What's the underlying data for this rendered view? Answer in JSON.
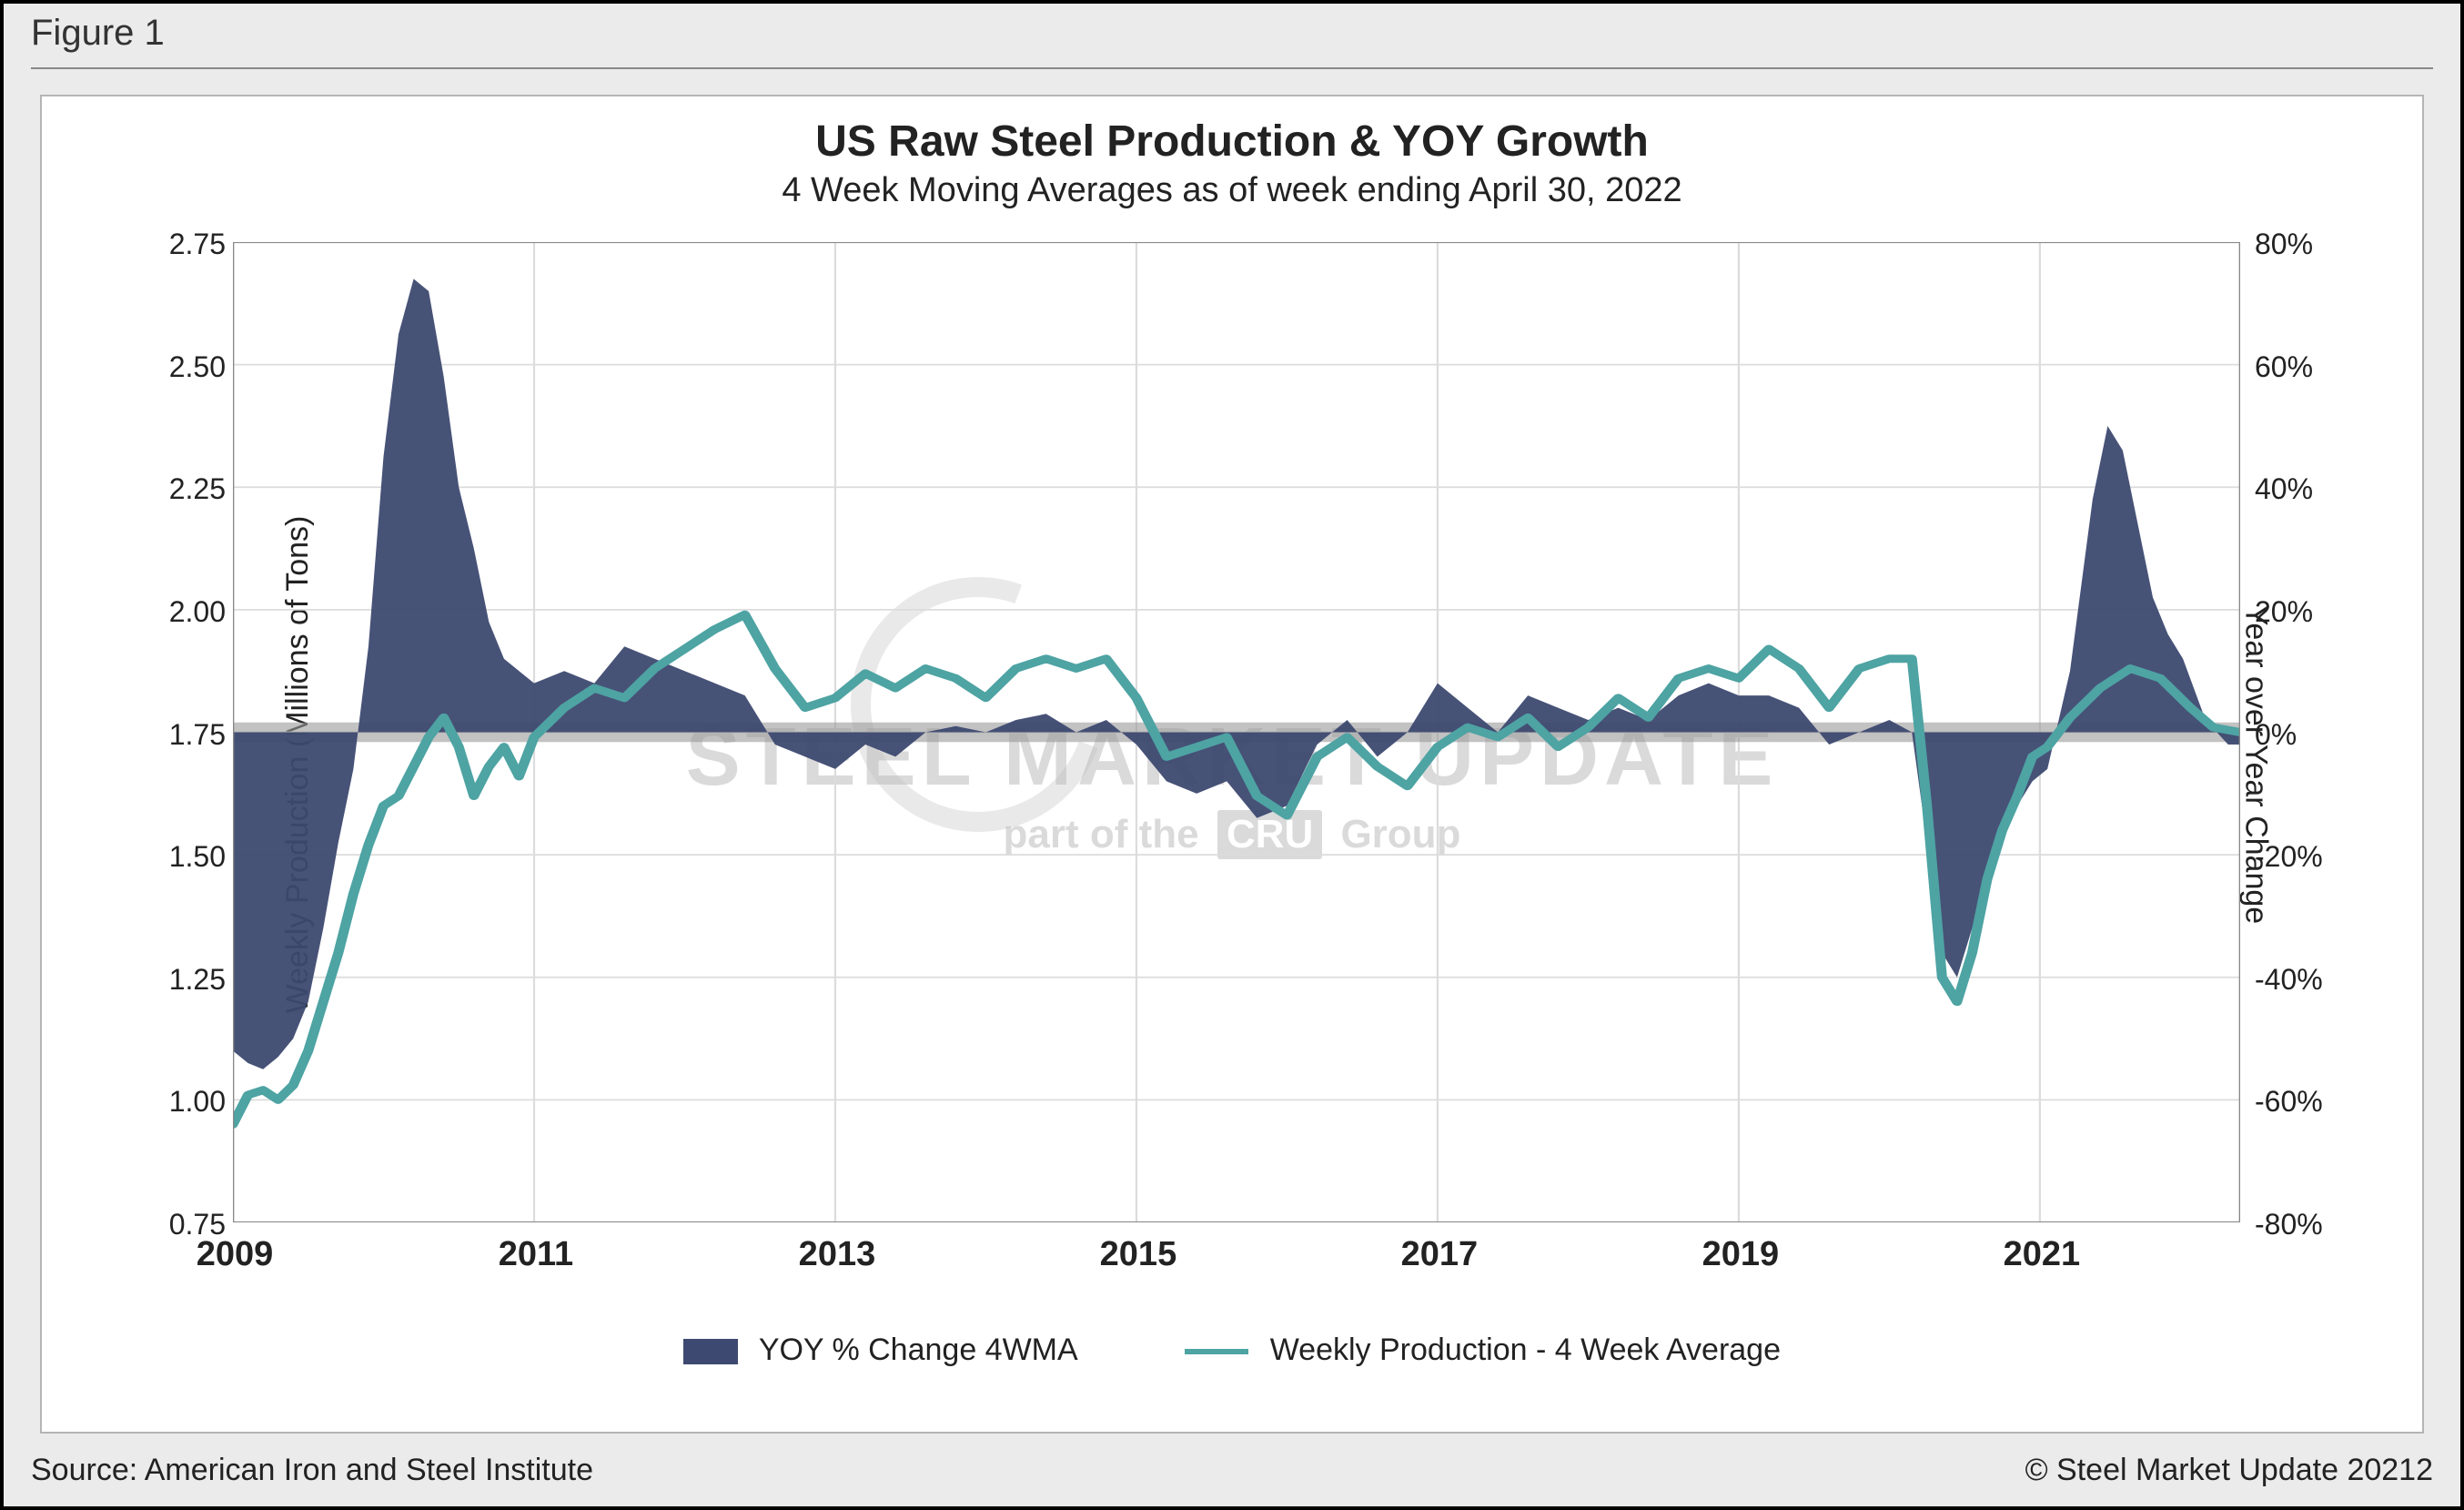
{
  "figure_label": "Figure 1",
  "title": "US Raw Steel Production & YOY Growth",
  "subtitle": "4 Week Moving Averages as of week ending April 30, 2022",
  "ylabel_left": "Weekly Production (Millions of Tons)",
  "ylabel_right": "Year over Year Change",
  "source_left": "Source: American Iron and Steel Institute",
  "source_right": "© Steel Market Update 20212",
  "legend": {
    "area_label": "YOY % Change 4WMA",
    "line_label": "Weekly Production - 4 Week Average"
  },
  "watermark": {
    "line1": "STEEL MARKET UPDATE",
    "line2_prefix": "part of the",
    "line2_box": "CRU",
    "line2_suffix": "Group"
  },
  "chart": {
    "type": "combo-area-line-dual-axis",
    "background_color": "#ffffff",
    "outer_background_color": "#ebebeb",
    "grid_color": "#dcdcdc",
    "axis_color": "#888888",
    "zero_band_color": "#9a9a9a",
    "area_color": "#3d4970",
    "line_color": "#4ea3a3",
    "line_width": 5,
    "title_fontsize": 48,
    "subtitle_fontsize": 38,
    "tick_fontsize": 32,
    "xtick_fontsize": 38,
    "x_range": [
      2009,
      2022.33
    ],
    "x_ticks": [
      2009,
      2011,
      2013,
      2015,
      2017,
      2019,
      2021
    ],
    "y1_range": [
      0.75,
      2.75
    ],
    "y1_ticks": [
      0.75,
      1.0,
      1.25,
      1.5,
      1.75,
      2.0,
      2.25,
      2.5,
      2.75
    ],
    "y1_tick_labels": [
      "0.75",
      "1.00",
      "1.25",
      "1.50",
      "1.75",
      "2.00",
      "2.25",
      "2.50",
      "2.75"
    ],
    "y2_range": [
      -80,
      80
    ],
    "y2_ticks": [
      -80,
      -60,
      -40,
      -20,
      0,
      20,
      40,
      60,
      80
    ],
    "y2_tick_labels": [
      "-80%",
      "-60%",
      "-40%",
      "-20%",
      "0%",
      "20%",
      "40%",
      "60%",
      "80%"
    ],
    "line_series": [
      [
        2009.0,
        0.95
      ],
      [
        2009.1,
        1.01
      ],
      [
        2009.2,
        1.02
      ],
      [
        2009.3,
        1.0
      ],
      [
        2009.4,
        1.03
      ],
      [
        2009.5,
        1.1
      ],
      [
        2009.6,
        1.2
      ],
      [
        2009.7,
        1.3
      ],
      [
        2009.8,
        1.42
      ],
      [
        2009.9,
        1.52
      ],
      [
        2010.0,
        1.6
      ],
      [
        2010.1,
        1.62
      ],
      [
        2010.2,
        1.68
      ],
      [
        2010.3,
        1.74
      ],
      [
        2010.4,
        1.78
      ],
      [
        2010.5,
        1.72
      ],
      [
        2010.6,
        1.62
      ],
      [
        2010.7,
        1.68
      ],
      [
        2010.8,
        1.72
      ],
      [
        2010.9,
        1.66
      ],
      [
        2011.0,
        1.74
      ],
      [
        2011.2,
        1.8
      ],
      [
        2011.4,
        1.84
      ],
      [
        2011.6,
        1.82
      ],
      [
        2011.8,
        1.88
      ],
      [
        2012.0,
        1.92
      ],
      [
        2012.2,
        1.96
      ],
      [
        2012.4,
        1.99
      ],
      [
        2012.6,
        1.88
      ],
      [
        2012.8,
        1.8
      ],
      [
        2013.0,
        1.82
      ],
      [
        2013.2,
        1.87
      ],
      [
        2013.4,
        1.84
      ],
      [
        2013.6,
        1.88
      ],
      [
        2013.8,
        1.86
      ],
      [
        2014.0,
        1.82
      ],
      [
        2014.2,
        1.88
      ],
      [
        2014.4,
        1.9
      ],
      [
        2014.6,
        1.88
      ],
      [
        2014.8,
        1.9
      ],
      [
        2015.0,
        1.82
      ],
      [
        2015.2,
        1.7
      ],
      [
        2015.4,
        1.72
      ],
      [
        2015.6,
        1.74
      ],
      [
        2015.8,
        1.62
      ],
      [
        2016.0,
        1.58
      ],
      [
        2016.2,
        1.7
      ],
      [
        2016.4,
        1.74
      ],
      [
        2016.6,
        1.68
      ],
      [
        2016.8,
        1.64
      ],
      [
        2017.0,
        1.72
      ],
      [
        2017.2,
        1.76
      ],
      [
        2017.4,
        1.74
      ],
      [
        2017.6,
        1.78
      ],
      [
        2017.8,
        1.72
      ],
      [
        2018.0,
        1.76
      ],
      [
        2018.2,
        1.82
      ],
      [
        2018.4,
        1.78
      ],
      [
        2018.6,
        1.86
      ],
      [
        2018.8,
        1.88
      ],
      [
        2019.0,
        1.86
      ],
      [
        2019.2,
        1.92
      ],
      [
        2019.4,
        1.88
      ],
      [
        2019.6,
        1.8
      ],
      [
        2019.8,
        1.88
      ],
      [
        2020.0,
        1.9
      ],
      [
        2020.15,
        1.9
      ],
      [
        2020.25,
        1.6
      ],
      [
        2020.35,
        1.25
      ],
      [
        2020.45,
        1.2
      ],
      [
        2020.55,
        1.3
      ],
      [
        2020.65,
        1.45
      ],
      [
        2020.75,
        1.55
      ],
      [
        2020.85,
        1.62
      ],
      [
        2020.95,
        1.7
      ],
      [
        2021.05,
        1.72
      ],
      [
        2021.2,
        1.78
      ],
      [
        2021.4,
        1.84
      ],
      [
        2021.6,
        1.88
      ],
      [
        2021.8,
        1.86
      ],
      [
        2022.0,
        1.8
      ],
      [
        2022.15,
        1.76
      ],
      [
        2022.33,
        1.75
      ]
    ],
    "area_series": [
      [
        2009.0,
        -52
      ],
      [
        2009.1,
        -54
      ],
      [
        2009.2,
        -55
      ],
      [
        2009.3,
        -53
      ],
      [
        2009.4,
        -50
      ],
      [
        2009.5,
        -44
      ],
      [
        2009.6,
        -32
      ],
      [
        2009.7,
        -18
      ],
      [
        2009.8,
        -6
      ],
      [
        2009.9,
        14
      ],
      [
        2010.0,
        45
      ],
      [
        2010.1,
        65
      ],
      [
        2010.2,
        74
      ],
      [
        2010.3,
        72
      ],
      [
        2010.4,
        58
      ],
      [
        2010.5,
        40
      ],
      [
        2010.6,
        30
      ],
      [
        2010.7,
        18
      ],
      [
        2010.8,
        12
      ],
      [
        2010.9,
        10
      ],
      [
        2011.0,
        8
      ],
      [
        2011.2,
        10
      ],
      [
        2011.4,
        8
      ],
      [
        2011.6,
        14
      ],
      [
        2011.8,
        12
      ],
      [
        2012.0,
        10
      ],
      [
        2012.2,
        8
      ],
      [
        2012.4,
        6
      ],
      [
        2012.6,
        -2
      ],
      [
        2012.8,
        -4
      ],
      [
        2013.0,
        -6
      ],
      [
        2013.2,
        -2
      ],
      [
        2013.4,
        -4
      ],
      [
        2013.6,
        0
      ],
      [
        2013.8,
        1
      ],
      [
        2014.0,
        0
      ],
      [
        2014.2,
        2
      ],
      [
        2014.4,
        3
      ],
      [
        2014.6,
        0
      ],
      [
        2014.8,
        2
      ],
      [
        2015.0,
        -2
      ],
      [
        2015.2,
        -8
      ],
      [
        2015.4,
        -10
      ],
      [
        2015.6,
        -8
      ],
      [
        2015.8,
        -14
      ],
      [
        2016.0,
        -12
      ],
      [
        2016.2,
        -2
      ],
      [
        2016.4,
        2
      ],
      [
        2016.6,
        -4
      ],
      [
        2016.8,
        0
      ],
      [
        2017.0,
        8
      ],
      [
        2017.2,
        4
      ],
      [
        2017.4,
        0
      ],
      [
        2017.6,
        6
      ],
      [
        2017.8,
        4
      ],
      [
        2018.0,
        2
      ],
      [
        2018.2,
        4
      ],
      [
        2018.4,
        2
      ],
      [
        2018.6,
        6
      ],
      [
        2018.8,
        8
      ],
      [
        2019.0,
        6
      ],
      [
        2019.2,
        6
      ],
      [
        2019.4,
        4
      ],
      [
        2019.6,
        -2
      ],
      [
        2019.8,
        0
      ],
      [
        2020.0,
        2
      ],
      [
        2020.15,
        0
      ],
      [
        2020.25,
        -18
      ],
      [
        2020.35,
        -36
      ],
      [
        2020.45,
        -40
      ],
      [
        2020.55,
        -32
      ],
      [
        2020.65,
        -22
      ],
      [
        2020.75,
        -16
      ],
      [
        2020.85,
        -12
      ],
      [
        2020.95,
        -8
      ],
      [
        2021.05,
        -6
      ],
      [
        2021.2,
        10
      ],
      [
        2021.35,
        38
      ],
      [
        2021.45,
        50
      ],
      [
        2021.55,
        46
      ],
      [
        2021.65,
        34
      ],
      [
        2021.75,
        22
      ],
      [
        2021.85,
        16
      ],
      [
        2021.95,
        12
      ],
      [
        2022.1,
        2
      ],
      [
        2022.25,
        -2
      ],
      [
        2022.33,
        -2
      ]
    ]
  }
}
